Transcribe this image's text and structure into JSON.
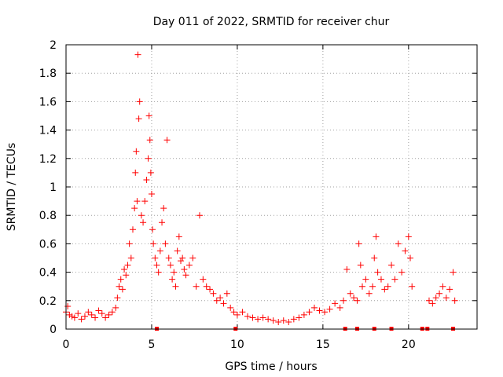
{
  "chart_data": {
    "type": "scatter",
    "title": "Day 011 of 2022, SRMTID for receiver chur",
    "xlabel": "GPS time / hours",
    "ylabel": "SRMTID / TECUs",
    "xlim": [
      0,
      24
    ],
    "ylim": [
      0,
      2
    ],
    "xticks": [
      0,
      5,
      10,
      15,
      20
    ],
    "xtick_labels": [
      "0",
      "5",
      "10",
      "15",
      "20"
    ],
    "yticks": [
      0,
      0.2,
      0.4,
      0.6,
      0.8,
      1,
      1.2,
      1.4,
      1.6,
      1.8,
      2
    ],
    "ytick_labels": [
      "0",
      "0.2",
      "0.4",
      "0.6",
      "0.8",
      "1",
      "1.2",
      "1.4",
      "1.6",
      "1.8",
      "2"
    ],
    "grid": true,
    "marker": "+",
    "color": "#ff0000",
    "series": [
      {
        "name": "SRMTID",
        "x": [
          0.0,
          0.1,
          0.2,
          0.35,
          0.5,
          0.7,
          0.9,
          1.1,
          1.3,
          1.5,
          1.7,
          1.9,
          2.1,
          2.3,
          2.5,
          2.7,
          2.9,
          3.0,
          3.1,
          3.2,
          3.3,
          3.4,
          3.5,
          3.6,
          3.7,
          3.8,
          3.9,
          4.0,
          4.05,
          4.1,
          4.15,
          4.2,
          4.25,
          4.3,
          4.4,
          4.5,
          4.6,
          4.7,
          4.8,
          4.85,
          4.9,
          4.95,
          5.0,
          5.05,
          5.1,
          5.2,
          5.3,
          5.4,
          5.5,
          5.6,
          5.7,
          5.8,
          5.9,
          6.0,
          6.1,
          6.2,
          6.3,
          6.4,
          6.5,
          6.6,
          6.7,
          6.8,
          6.9,
          7.0,
          7.2,
          7.4,
          7.6,
          7.8,
          8.0,
          8.2,
          8.4,
          8.6,
          8.8,
          9.0,
          9.2,
          9.4,
          9.6,
          9.8,
          10.0,
          10.3,
          10.6,
          10.9,
          11.2,
          11.5,
          11.8,
          12.1,
          12.4,
          12.7,
          13.0,
          13.3,
          13.6,
          13.9,
          14.2,
          14.5,
          14.8,
          15.1,
          15.4,
          15.7,
          16.0,
          16.2,
          16.4,
          16.6,
          16.8,
          17.0,
          17.1,
          17.2,
          17.3,
          17.5,
          17.7,
          17.9,
          18.0,
          18.1,
          18.2,
          18.4,
          18.6,
          18.8,
          19.0,
          19.2,
          19.4,
          19.6,
          19.8,
          20.0,
          20.1,
          20.2,
          21.2,
          21.4,
          21.6,
          21.8,
          22.0,
          22.2,
          22.4,
          22.6,
          22.7
        ],
        "y": [
          0.12,
          0.16,
          0.1,
          0.09,
          0.08,
          0.11,
          0.07,
          0.09,
          0.12,
          0.1,
          0.08,
          0.13,
          0.11,
          0.08,
          0.1,
          0.12,
          0.15,
          0.22,
          0.3,
          0.35,
          0.28,
          0.42,
          0.38,
          0.45,
          0.6,
          0.5,
          0.7,
          0.85,
          1.1,
          1.25,
          0.9,
          1.93,
          1.48,
          1.6,
          0.8,
          0.75,
          0.9,
          1.05,
          1.2,
          1.5,
          1.33,
          1.1,
          0.95,
          0.7,
          0.6,
          0.5,
          0.45,
          0.4,
          0.55,
          0.75,
          0.85,
          0.6,
          1.33,
          0.5,
          0.45,
          0.35,
          0.4,
          0.3,
          0.55,
          0.65,
          0.48,
          0.5,
          0.42,
          0.38,
          0.45,
          0.5,
          0.3,
          0.8,
          0.35,
          0.3,
          0.28,
          0.25,
          0.2,
          0.22,
          0.18,
          0.25,
          0.15,
          0.12,
          0.1,
          0.12,
          0.09,
          0.08,
          0.07,
          0.08,
          0.07,
          0.06,
          0.05,
          0.06,
          0.05,
          0.07,
          0.08,
          0.1,
          0.12,
          0.15,
          0.13,
          0.12,
          0.14,
          0.18,
          0.15,
          0.2,
          0.42,
          0.25,
          0.22,
          0.2,
          0.6,
          0.45,
          0.3,
          0.35,
          0.25,
          0.3,
          0.5,
          0.65,
          0.4,
          0.35,
          0.28,
          0.3,
          0.45,
          0.35,
          0.6,
          0.4,
          0.55,
          0.65,
          0.5,
          0.3,
          0.2,
          0.18,
          0.22,
          0.25,
          0.3,
          0.22,
          0.28,
          0.4,
          0.2
        ],
        "zero_markers_x": [
          5.3,
          9.9,
          16.3,
          17.0,
          18.0,
          19.0,
          20.8,
          21.1,
          22.6
        ]
      }
    ]
  }
}
